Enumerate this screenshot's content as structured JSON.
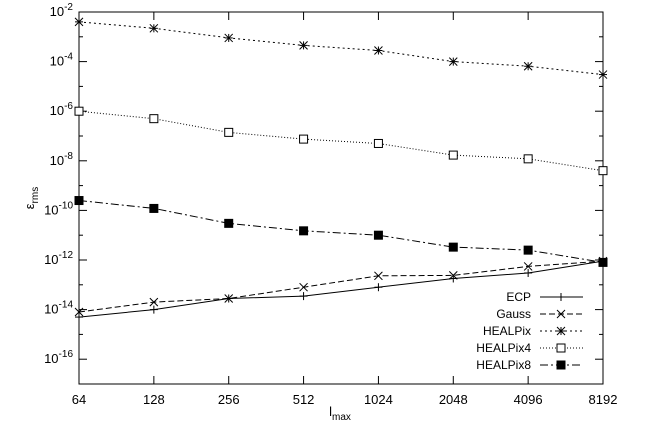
{
  "chart_data": {
    "type": "line",
    "title": "",
    "xlabel": "l",
    "xlabel_sub": "max",
    "ylabel": "ε",
    "ylabel_sub": "rms",
    "xscale": "log2",
    "yscale": "log10",
    "x": [
      64,
      128,
      256,
      512,
      1024,
      2048,
      4096,
      8192
    ],
    "x_tick_labels": [
      "64",
      "128",
      "256",
      "512",
      "1024",
      "2048",
      "4096",
      "8192"
    ],
    "ylim": [
      1e-17,
      0.01
    ],
    "y_ticks": [
      {
        "base": "10",
        "exp": "-2",
        "value": 0.01
      },
      {
        "base": "10",
        "exp": "-4",
        "value": 0.0001
      },
      {
        "base": "10",
        "exp": "-6",
        "value": 1e-06
      },
      {
        "base": "10",
        "exp": "-8",
        "value": 1e-08
      },
      {
        "base": "10",
        "exp": "-10",
        "value": 1e-10
      },
      {
        "base": "10",
        "exp": "-12",
        "value": 1e-12
      },
      {
        "base": "10",
        "exp": "-14",
        "value": 1e-14
      },
      {
        "base": "10",
        "exp": "-16",
        "value": 1e-16
      }
    ],
    "grid": false,
    "legend_position": "bottom-right",
    "series": [
      {
        "name": "ECP",
        "marker": "plus",
        "dash": "",
        "values": [
          5e-15,
          1e-14,
          2.8e-14,
          3.5e-14,
          8e-14,
          1.8e-13,
          3e-13,
          9e-13
        ]
      },
      {
        "name": "Gauss",
        "marker": "cross",
        "dash": "6,3",
        "values": [
          8e-15,
          2e-14,
          2.8e-14,
          8e-14,
          2.3e-13,
          2.4e-13,
          5.5e-13,
          9e-13
        ]
      },
      {
        "name": "HEALPix",
        "marker": "star",
        "dash": "2,3",
        "values": [
          0.004,
          0.0022,
          0.0009,
          0.00045,
          0.00028,
          0.0001,
          6.5e-05,
          3e-05
        ]
      },
      {
        "name": "HEALPix4",
        "marker": "square-open",
        "dash": "1,2",
        "values": [
          1e-06,
          5e-07,
          1.4e-07,
          7.5e-08,
          5e-08,
          1.7e-08,
          1.2e-08,
          4e-09
        ]
      },
      {
        "name": "HEALPix8",
        "marker": "square-filled",
        "dash": "8,3,2,3",
        "values": [
          2.5e-10,
          1.2e-10,
          3e-11,
          1.5e-11,
          1e-11,
          3.3e-12,
          2.5e-12,
          8e-13
        ]
      }
    ]
  }
}
